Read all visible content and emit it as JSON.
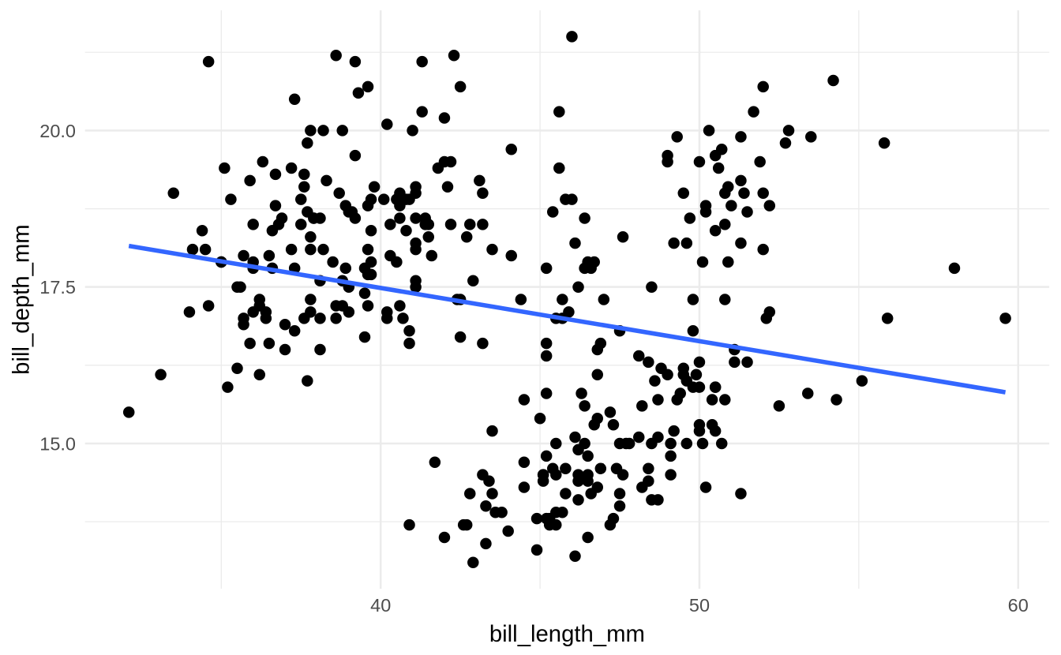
{
  "chart_data": {
    "type": "scatter",
    "title": "",
    "xlabel": "bill_length_mm",
    "ylabel": "bill_depth_mm",
    "x_ticks": {
      "values": [
        40,
        50,
        60
      ],
      "labels": [
        "40",
        "50",
        "60"
      ]
    },
    "y_ticks": {
      "values": [
        15.0,
        17.5,
        20.0
      ],
      "labels": [
        "15.0",
        "17.5",
        "20.0"
      ]
    },
    "x_minor_ticks": [
      35,
      45,
      55
    ],
    "y_minor_ticks": [
      13.75,
      16.25,
      18.75,
      21.25
    ],
    "xlim": [
      30.725,
      60.975
    ],
    "ylim": [
      12.68,
      21.92
    ],
    "grid": true,
    "legend": false,
    "theme": "minimal-white",
    "colors": {
      "point": "#000000",
      "smooth_line": "#3366FF",
      "grid_major": "#EBEBEB",
      "grid_minor": "#EBEBEB",
      "tick_label": "#4D4D4D",
      "axis_title": "#000000",
      "background": "#FFFFFF"
    },
    "regression_line": {
      "method": "lm",
      "se": false,
      "intercept": 20.8855,
      "slope": -0.08502,
      "x_start": 32.1,
      "x_end": 59.6
    },
    "points": [
      [
        39.1,
        18.7
      ],
      [
        39.5,
        17.4
      ],
      [
        40.3,
        18.0
      ],
      [
        36.7,
        19.3
      ],
      [
        39.3,
        20.6
      ],
      [
        38.9,
        17.8
      ],
      [
        39.2,
        19.6
      ],
      [
        34.1,
        18.1
      ],
      [
        42.0,
        20.2
      ],
      [
        37.8,
        17.1
      ],
      [
        37.8,
        17.3
      ],
      [
        41.1,
        17.6
      ],
      [
        38.6,
        21.2
      ],
      [
        34.6,
        21.1
      ],
      [
        36.6,
        17.8
      ],
      [
        38.7,
        19.0
      ],
      [
        42.5,
        20.7
      ],
      [
        34.4,
        18.4
      ],
      [
        46.0,
        21.5
      ],
      [
        37.8,
        18.3
      ],
      [
        37.7,
        18.7
      ],
      [
        35.9,
        19.2
      ],
      [
        38.2,
        18.1
      ],
      [
        38.8,
        17.2
      ],
      [
        35.3,
        18.9
      ],
      [
        40.6,
        18.6
      ],
      [
        40.5,
        17.9
      ],
      [
        37.9,
        18.6
      ],
      [
        40.5,
        18.9
      ],
      [
        39.5,
        16.7
      ],
      [
        37.2,
        18.1
      ],
      [
        39.5,
        17.8
      ],
      [
        40.9,
        18.9
      ],
      [
        36.4,
        17.0
      ],
      [
        39.2,
        21.1
      ],
      [
        38.8,
        20.0
      ],
      [
        42.2,
        18.5
      ],
      [
        37.6,
        19.3
      ],
      [
        39.8,
        19.1
      ],
      [
        36.5,
        18.0
      ],
      [
        40.8,
        18.4
      ],
      [
        36.0,
        18.5
      ],
      [
        44.1,
        19.7
      ],
      [
        37.0,
        16.9
      ],
      [
        39.6,
        18.8
      ],
      [
        41.1,
        19.0
      ],
      [
        37.5,
        18.9
      ],
      [
        36.0,
        17.9
      ],
      [
        42.3,
        21.2
      ],
      [
        39.6,
        17.7
      ],
      [
        40.1,
        18.9
      ],
      [
        35.0,
        17.9
      ],
      [
        42.0,
        19.5
      ],
      [
        34.5,
        18.1
      ],
      [
        41.4,
        18.6
      ],
      [
        39.0,
        17.5
      ],
      [
        40.6,
        18.8
      ],
      [
        36.5,
        16.6
      ],
      [
        37.6,
        19.1
      ],
      [
        35.7,
        16.9
      ],
      [
        41.3,
        21.1
      ],
      [
        37.6,
        17.0
      ],
      [
        41.1,
        18.2
      ],
      [
        36.4,
        17.1
      ],
      [
        41.6,
        18.0
      ],
      [
        35.5,
        16.2
      ],
      [
        41.1,
        19.1
      ],
      [
        35.9,
        16.6
      ],
      [
        41.8,
        19.4
      ],
      [
        33.5,
        19.0
      ],
      [
        39.7,
        18.4
      ],
      [
        39.6,
        17.2
      ],
      [
        45.8,
        18.9
      ],
      [
        35.5,
        17.5
      ],
      [
        42.8,
        18.5
      ],
      [
        40.9,
        16.8
      ],
      [
        37.2,
        19.4
      ],
      [
        36.2,
        16.1
      ],
      [
        42.1,
        19.1
      ],
      [
        34.6,
        17.2
      ],
      [
        42.9,
        17.6
      ],
      [
        36.7,
        18.8
      ],
      [
        35.1,
        19.4
      ],
      [
        37.3,
        17.8
      ],
      [
        41.3,
        20.3
      ],
      [
        36.3,
        19.5
      ],
      [
        36.9,
        18.6
      ],
      [
        38.3,
        19.2
      ],
      [
        38.9,
        18.8
      ],
      [
        35.7,
        18.0
      ],
      [
        41.1,
        18.1
      ],
      [
        34.0,
        17.1
      ],
      [
        39.6,
        18.1
      ],
      [
        36.2,
        17.3
      ],
      [
        40.8,
        18.9
      ],
      [
        38.1,
        18.6
      ],
      [
        40.3,
        18.5
      ],
      [
        33.1,
        16.1
      ],
      [
        43.2,
        18.5
      ],
      [
        35.0,
        17.9
      ],
      [
        41.0,
        20.0
      ],
      [
        37.7,
        16.0
      ],
      [
        37.8,
        20.0
      ],
      [
        37.9,
        18.6
      ],
      [
        39.7,
        18.9
      ],
      [
        38.6,
        17.2
      ],
      [
        38.2,
        20.0
      ],
      [
        38.1,
        17.0
      ],
      [
        43.2,
        19.0
      ],
      [
        38.1,
        16.5
      ],
      [
        45.6,
        20.3
      ],
      [
        39.7,
        17.7
      ],
      [
        42.2,
        19.5
      ],
      [
        39.6,
        20.7
      ],
      [
        42.7,
        18.3
      ],
      [
        38.6,
        17.0
      ],
      [
        37.3,
        20.5
      ],
      [
        35.7,
        17.0
      ],
      [
        41.1,
        18.6
      ],
      [
        36.2,
        17.2
      ],
      [
        37.7,
        19.8
      ],
      [
        40.2,
        17.0
      ],
      [
        41.4,
        18.5
      ],
      [
        35.2,
        15.9
      ],
      [
        40.6,
        19.0
      ],
      [
        38.8,
        17.6
      ],
      [
        41.5,
        18.3
      ],
      [
        39.0,
        17.1
      ],
      [
        44.1,
        18.0
      ],
      [
        38.5,
        17.9
      ],
      [
        43.1,
        19.2
      ],
      [
        36.8,
        18.5
      ],
      [
        37.5,
        18.5
      ],
      [
        38.1,
        17.6
      ],
      [
        41.1,
        17.5
      ],
      [
        35.6,
        17.5
      ],
      [
        40.2,
        20.1
      ],
      [
        37.0,
        16.5
      ],
      [
        39.7,
        17.9
      ],
      [
        40.2,
        17.1
      ],
      [
        40.6,
        17.2
      ],
      [
        32.1,
        15.5
      ],
      [
        40.7,
        17.0
      ],
      [
        37.3,
        16.8
      ],
      [
        39.0,
        18.7
      ],
      [
        39.2,
        18.6
      ],
      [
        36.6,
        18.4
      ],
      [
        36.0,
        17.8
      ],
      [
        37.8,
        18.1
      ],
      [
        36.0,
        17.1
      ],
      [
        41.5,
        18.5
      ],
      [
        46.1,
        13.2
      ],
      [
        50.0,
        16.3
      ],
      [
        48.7,
        14.1
      ],
      [
        50.0,
        15.2
      ],
      [
        47.6,
        14.5
      ],
      [
        46.5,
        13.5
      ],
      [
        45.4,
        14.6
      ],
      [
        46.7,
        15.3
      ],
      [
        43.3,
        13.4
      ],
      [
        46.8,
        15.4
      ],
      [
        40.9,
        13.7
      ],
      [
        49.0,
        16.1
      ],
      [
        45.5,
        13.7
      ],
      [
        48.4,
        14.6
      ],
      [
        45.8,
        14.6
      ],
      [
        49.3,
        15.7
      ],
      [
        42.0,
        13.5
      ],
      [
        49.2,
        15.2
      ],
      [
        46.2,
        14.5
      ],
      [
        48.7,
        15.1
      ],
      [
        50.2,
        14.3
      ],
      [
        45.1,
        14.5
      ],
      [
        46.5,
        14.5
      ],
      [
        46.3,
        15.8
      ],
      [
        42.9,
        13.1
      ],
      [
        46.1,
        15.1
      ],
      [
        44.5,
        14.3
      ],
      [
        47.8,
        15.0
      ],
      [
        48.2,
        14.3
      ],
      [
        50.0,
        15.3
      ],
      [
        47.3,
        15.3
      ],
      [
        42.8,
        14.2
      ],
      [
        45.1,
        14.5
      ],
      [
        59.6,
        17.0
      ],
      [
        49.1,
        14.8
      ],
      [
        48.4,
        16.3
      ],
      [
        42.6,
        13.7
      ],
      [
        44.4,
        17.3
      ],
      [
        44.0,
        13.6
      ],
      [
        48.7,
        15.7
      ],
      [
        42.7,
        13.7
      ],
      [
        49.6,
        16.0
      ],
      [
        45.3,
        13.7
      ],
      [
        49.6,
        15.0
      ],
      [
        50.5,
        15.9
      ],
      [
        43.6,
        13.9
      ],
      [
        45.5,
        13.9
      ],
      [
        50.5,
        15.9
      ],
      [
        44.9,
        13.3
      ],
      [
        45.2,
        15.8
      ],
      [
        46.6,
        14.2
      ],
      [
        48.5,
        14.1
      ],
      [
        45.1,
        14.4
      ],
      [
        50.1,
        15.0
      ],
      [
        46.5,
        14.4
      ],
      [
        45.0,
        15.4
      ],
      [
        43.8,
        13.9
      ],
      [
        45.5,
        15.0
      ],
      [
        43.2,
        14.5
      ],
      [
        50.4,
        15.3
      ],
      [
        45.3,
        13.8
      ],
      [
        46.2,
        14.9
      ],
      [
        45.7,
        13.9
      ],
      [
        54.3,
        15.7
      ],
      [
        45.8,
        14.2
      ],
      [
        49.8,
        16.8
      ],
      [
        46.2,
        14.4
      ],
      [
        49.5,
        16.2
      ],
      [
        43.5,
        14.2
      ],
      [
        50.7,
        15.0
      ],
      [
        47.7,
        15.0
      ],
      [
        46.4,
        15.6
      ],
      [
        48.2,
        15.6
      ],
      [
        46.5,
        14.8
      ],
      [
        46.4,
        15.0
      ],
      [
        48.6,
        16.0
      ],
      [
        47.5,
        14.2
      ],
      [
        51.1,
        16.3
      ],
      [
        45.2,
        13.8
      ],
      [
        45.2,
        16.4
      ],
      [
        49.1,
        14.5
      ],
      [
        52.5,
        15.6
      ],
      [
        47.4,
        14.6
      ],
      [
        50.0,
        15.9
      ],
      [
        44.9,
        13.8
      ],
      [
        50.8,
        17.3
      ],
      [
        43.4,
        14.4
      ],
      [
        51.3,
        14.2
      ],
      [
        47.5,
        14.0
      ],
      [
        52.1,
        17.0
      ],
      [
        47.5,
        15.0
      ],
      [
        52.2,
        17.1
      ],
      [
        45.5,
        14.5
      ],
      [
        49.5,
        16.1
      ],
      [
        44.5,
        14.7
      ],
      [
        50.8,
        15.7
      ],
      [
        49.4,
        15.8
      ],
      [
        46.9,
        14.6
      ],
      [
        48.4,
        14.4
      ],
      [
        51.1,
        16.5
      ],
      [
        48.5,
        15.0
      ],
      [
        55.9,
        17.0
      ],
      [
        47.2,
        15.5
      ],
      [
        49.1,
        15.0
      ],
      [
        47.3,
        13.8
      ],
      [
        46.8,
        16.1
      ],
      [
        41.7,
        14.7
      ],
      [
        53.4,
        15.8
      ],
      [
        43.3,
        14.0
      ],
      [
        48.1,
        15.1
      ],
      [
        50.5,
        15.2
      ],
      [
        49.8,
        15.9
      ],
      [
        43.5,
        15.2
      ],
      [
        51.5,
        16.3
      ],
      [
        46.2,
        14.1
      ],
      [
        55.1,
        16.0
      ],
      [
        44.5,
        15.7
      ],
      [
        48.8,
        16.2
      ],
      [
        47.2,
        13.7
      ],
      [
        46.8,
        14.3
      ],
      [
        50.4,
        15.7
      ],
      [
        45.2,
        14.8
      ],
      [
        49.9,
        16.1
      ],
      [
        46.5,
        17.9
      ],
      [
        50.0,
        19.5
      ],
      [
        51.3,
        19.2
      ],
      [
        45.4,
        18.7
      ],
      [
        52.7,
        19.8
      ],
      [
        45.2,
        17.8
      ],
      [
        46.1,
        18.2
      ],
      [
        51.3,
        18.2
      ],
      [
        46.0,
        18.9
      ],
      [
        51.3,
        19.9
      ],
      [
        46.6,
        17.8
      ],
      [
        51.7,
        20.3
      ],
      [
        47.0,
        17.3
      ],
      [
        52.0,
        18.1
      ],
      [
        45.9,
        17.1
      ],
      [
        50.5,
        19.6
      ],
      [
        50.3,
        20.0
      ],
      [
        58.0,
        17.8
      ],
      [
        46.4,
        18.6
      ],
      [
        49.2,
        18.2
      ],
      [
        42.4,
        17.3
      ],
      [
        48.5,
        17.5
      ],
      [
        43.2,
        16.6
      ],
      [
        50.6,
        19.4
      ],
      [
        46.7,
        17.9
      ],
      [
        52.0,
        19.0
      ],
      [
        50.5,
        18.4
      ],
      [
        49.5,
        19.0
      ],
      [
        46.4,
        17.8
      ],
      [
        52.8,
        20.0
      ],
      [
        40.9,
        16.6
      ],
      [
        54.2,
        20.8
      ],
      [
        42.5,
        16.7
      ],
      [
        51.0,
        18.8
      ],
      [
        49.7,
        18.6
      ],
      [
        47.5,
        16.8
      ],
      [
        47.6,
        18.3
      ],
      [
        52.0,
        20.7
      ],
      [
        46.9,
        16.6
      ],
      [
        53.5,
        19.9
      ],
      [
        49.0,
        19.5
      ],
      [
        46.2,
        17.5
      ],
      [
        50.9,
        19.1
      ],
      [
        45.5,
        17.0
      ],
      [
        50.9,
        17.9
      ],
      [
        50.8,
        18.5
      ],
      [
        50.1,
        17.9
      ],
      [
        49.0,
        19.6
      ],
      [
        51.5,
        18.7
      ],
      [
        49.8,
        17.3
      ],
      [
        48.1,
        16.4
      ],
      [
        51.4,
        19.0
      ],
      [
        45.7,
        17.3
      ],
      [
        50.7,
        19.7
      ],
      [
        42.5,
        17.3
      ],
      [
        52.2,
        18.8
      ],
      [
        45.2,
        16.6
      ],
      [
        49.3,
        19.9
      ],
      [
        50.2,
        18.8
      ],
      [
        45.6,
        19.4
      ],
      [
        51.9,
        19.5
      ],
      [
        46.8,
        16.5
      ],
      [
        45.7,
        17.0
      ],
      [
        55.8,
        19.8
      ],
      [
        43.5,
        18.1
      ],
      [
        49.6,
        18.2
      ],
      [
        50.8,
        19.0
      ],
      [
        50.2,
        18.7
      ]
    ]
  }
}
